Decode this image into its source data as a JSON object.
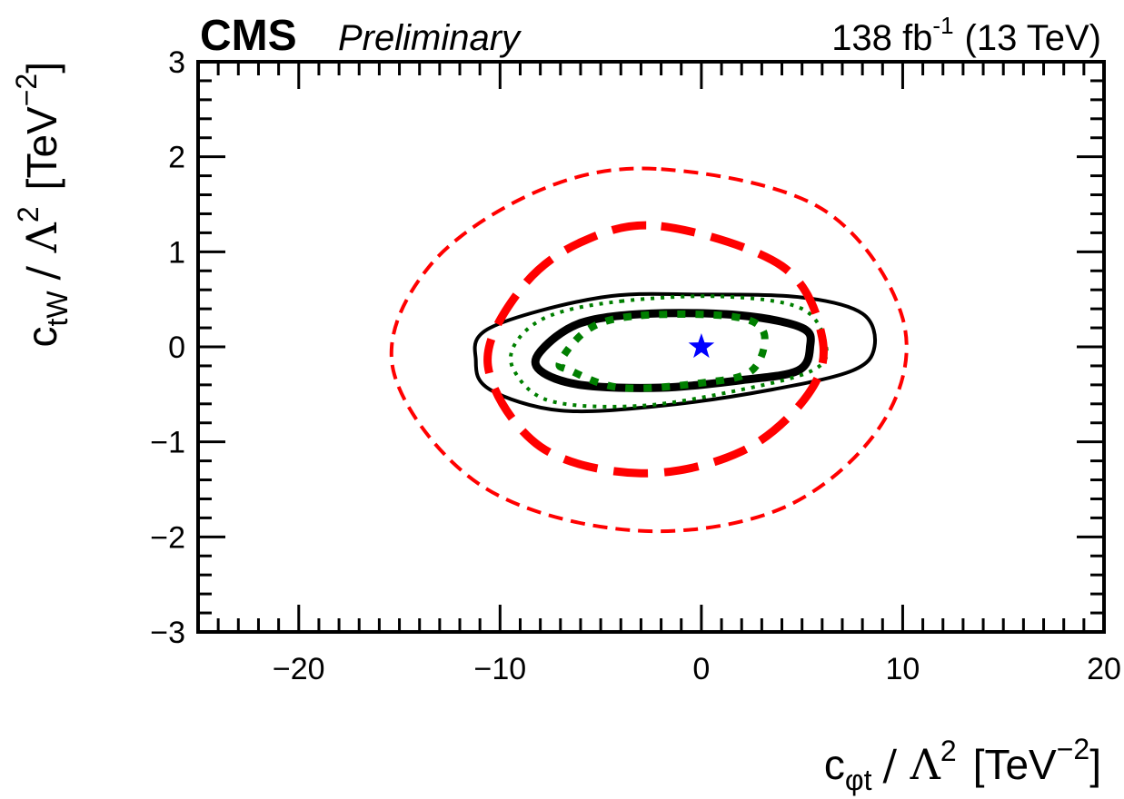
{
  "header": {
    "experiment": "CMS",
    "status": "Preliminary",
    "lumi_value": "138",
    "lumi_unit": "fb",
    "lumi_exp": "-1",
    "energy": "(13 TeV)"
  },
  "axes": {
    "x_title": {
      "main": "c",
      "sub": "φt",
      "rest": "/ Λ",
      "sup": "2",
      "unit": "[TeV",
      "unit_exp": "−2",
      "close": "]"
    },
    "y_title": {
      "main": "c",
      "sub": "tW",
      "rest": "/ Λ",
      "sup": "2",
      "unit": "[TeV",
      "unit_exp": "−2",
      "close": "]"
    }
  },
  "chart_data": {
    "type": "contour",
    "xlim": [
      -25,
      20
    ],
    "ylim": [
      -3,
      3
    ],
    "x_ticks": [
      -20,
      -10,
      0,
      10,
      20
    ],
    "y_ticks": [
      -3,
      -2,
      -1,
      0,
      1,
      2,
      3
    ],
    "x_tick_labels": [
      "−20",
      "−10",
      "0",
      "10",
      "20"
    ],
    "y_tick_labels": [
      "−3",
      "−2",
      "−1",
      "0",
      "1",
      "2",
      "3"
    ],
    "best_fit": {
      "x": 0.0,
      "y": 0.0,
      "marker": "star",
      "color": "#0000ff"
    },
    "contours": [
      {
        "id": "black-thick",
        "color": "#000000",
        "style": "solid",
        "weight": "thick",
        "points": [
          [
            -2.5,
            0.35
          ],
          [
            2.0,
            0.33
          ],
          [
            5.0,
            0.2
          ],
          [
            5.4,
            0.0
          ],
          [
            4.8,
            -0.25
          ],
          [
            2.0,
            -0.35
          ],
          [
            -2.0,
            -0.43
          ],
          [
            -6.0,
            -0.4
          ],
          [
            -8.0,
            -0.25
          ],
          [
            -8.0,
            -0.05
          ],
          [
            -6.0,
            0.25
          ]
        ]
      },
      {
        "id": "black-thin",
        "color": "#000000",
        "style": "solid",
        "weight": "thin",
        "points": [
          [
            -5.0,
            0.52
          ],
          [
            0.0,
            0.55
          ],
          [
            5.0,
            0.52
          ],
          [
            8.0,
            0.35
          ],
          [
            8.6,
            0.0
          ],
          [
            7.5,
            -0.25
          ],
          [
            3.5,
            -0.45
          ],
          [
            -2.0,
            -0.62
          ],
          [
            -7.0,
            -0.67
          ],
          [
            -10.5,
            -0.45
          ],
          [
            -11.2,
            -0.15
          ],
          [
            -10.5,
            0.2
          ]
        ]
      },
      {
        "id": "green-thick",
        "color": "#007f00",
        "style": "dotted",
        "weight": "thick",
        "points": [
          [
            -3.0,
            0.33
          ],
          [
            1.5,
            0.32
          ],
          [
            3.1,
            0.15
          ],
          [
            2.5,
            -0.25
          ],
          [
            0.0,
            -0.38
          ],
          [
            -4.0,
            -0.43
          ],
          [
            -6.5,
            -0.25
          ],
          [
            -7.0,
            -0.15
          ],
          [
            -5.5,
            0.2
          ]
        ]
      },
      {
        "id": "green-thin",
        "color": "#007f00",
        "style": "dotted",
        "weight": "thin",
        "points": [
          [
            -4.0,
            0.48
          ],
          [
            1.0,
            0.53
          ],
          [
            5.0,
            0.4
          ],
          [
            6.2,
            0.0
          ],
          [
            5.5,
            -0.25
          ],
          [
            2.0,
            -0.45
          ],
          [
            -3.0,
            -0.62
          ],
          [
            -7.5,
            -0.57
          ],
          [
            -9.3,
            -0.25
          ],
          [
            -9.2,
            0.05
          ],
          [
            -7.5,
            0.33
          ]
        ]
      },
      {
        "id": "red-thick",
        "color": "#ff0000",
        "style": "dashed",
        "weight": "thick",
        "points": [
          [
            -2.0,
            1.27
          ],
          [
            4.0,
            0.85
          ],
          [
            6.0,
            0.1
          ],
          [
            5.3,
            -0.5
          ],
          [
            2.0,
            -1.1
          ],
          [
            -3.0,
            -1.33
          ],
          [
            -8.0,
            -1.05
          ],
          [
            -10.6,
            -0.2
          ],
          [
            -9.0,
            0.6
          ],
          [
            -6.0,
            1.1
          ]
        ]
      },
      {
        "id": "red-thin",
        "color": "#ff0000",
        "style": "dashed",
        "weight": "thin",
        "points": [
          [
            -2.0,
            1.87
          ],
          [
            6.0,
            1.45
          ],
          [
            10.0,
            0.3
          ],
          [
            9.0,
            -0.8
          ],
          [
            4.0,
            -1.7
          ],
          [
            -3.5,
            -1.93
          ],
          [
            -11.0,
            -1.45
          ],
          [
            -15.3,
            -0.25
          ],
          [
            -13.5,
            0.85
          ],
          [
            -8.0,
            1.65
          ]
        ]
      }
    ]
  }
}
